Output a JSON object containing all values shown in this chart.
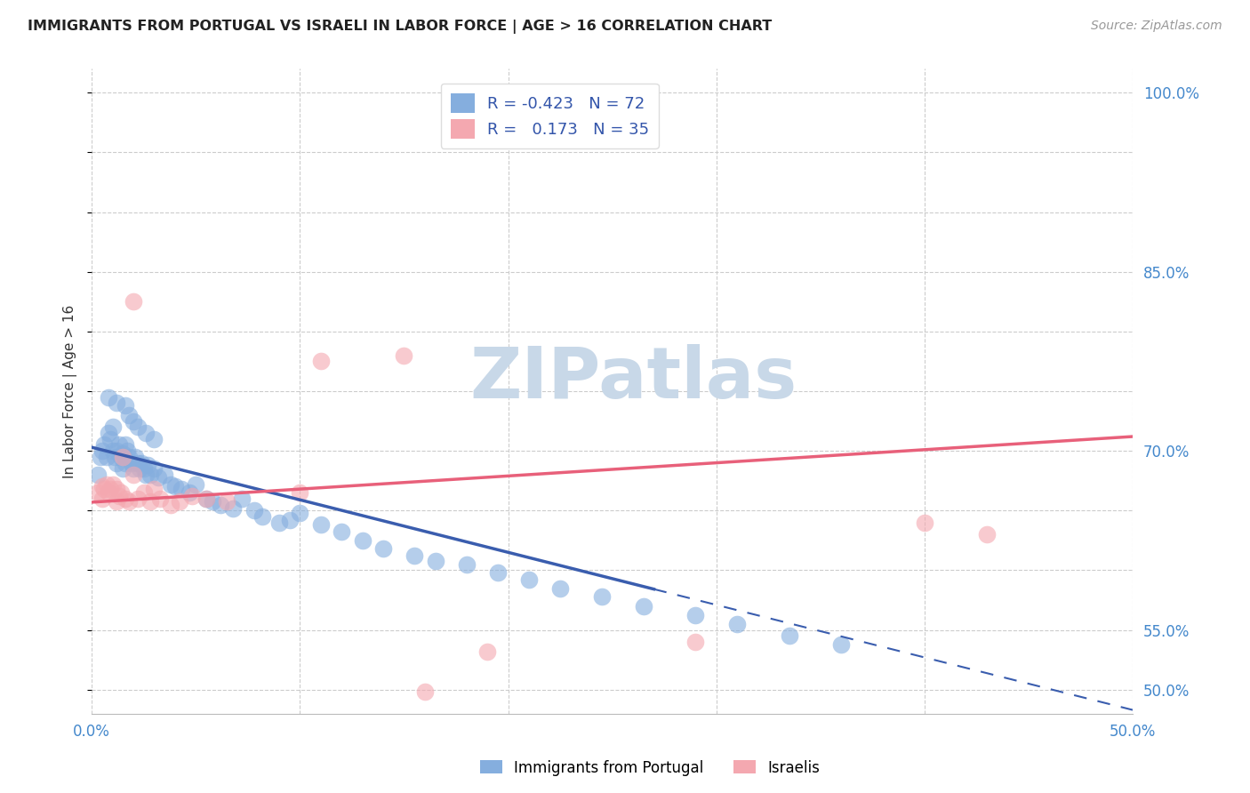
{
  "title": "IMMIGRANTS FROM PORTUGAL VS ISRAELI IN LABOR FORCE | AGE > 16 CORRELATION CHART",
  "source": "Source: ZipAtlas.com",
  "ylabel": "In Labor Force | Age > 16",
  "xlim": [
    0.0,
    0.5
  ],
  "ylim": [
    0.48,
    1.02
  ],
  "legend_label1": "R = -0.423   N = 72",
  "legend_label2": "R =   0.173   N = 35",
  "legend_label1_color": "#85AEDE",
  "legend_label2_color": "#F4A8B0",
  "line1_color": "#3A5DAE",
  "line2_color": "#E8607A",
  "line1_x0": 0.0,
  "line1_y0": 0.703,
  "line1_x1": 0.5,
  "line1_y1": 0.483,
  "line1_solid_end": 0.27,
  "line2_x0": 0.0,
  "line2_y0": 0.657,
  "line2_x1": 0.5,
  "line2_y1": 0.712,
  "watermark": "ZIPatlas",
  "watermark_color": "#C8D8E8",
  "portugal_x": [
    0.003,
    0.004,
    0.005,
    0.006,
    0.007,
    0.008,
    0.009,
    0.01,
    0.01,
    0.011,
    0.012,
    0.012,
    0.013,
    0.014,
    0.015,
    0.015,
    0.016,
    0.016,
    0.017,
    0.018,
    0.019,
    0.02,
    0.021,
    0.022,
    0.023,
    0.024,
    0.025,
    0.026,
    0.027,
    0.028,
    0.03,
    0.032,
    0.035,
    0.038,
    0.04,
    0.043,
    0.047,
    0.05,
    0.055,
    0.058,
    0.062,
    0.068,
    0.072,
    0.078,
    0.082,
    0.09,
    0.095,
    0.1,
    0.11,
    0.12,
    0.13,
    0.14,
    0.155,
    0.165,
    0.18,
    0.195,
    0.21,
    0.225,
    0.245,
    0.265,
    0.29,
    0.31,
    0.335,
    0.36,
    0.008,
    0.012,
    0.016,
    0.018,
    0.02,
    0.022,
    0.026,
    0.03
  ],
  "portugal_y": [
    0.68,
    0.695,
    0.7,
    0.705,
    0.695,
    0.715,
    0.71,
    0.72,
    0.7,
    0.695,
    0.7,
    0.69,
    0.705,
    0.695,
    0.698,
    0.685,
    0.705,
    0.69,
    0.7,
    0.695,
    0.69,
    0.685,
    0.695,
    0.69,
    0.685,
    0.69,
    0.685,
    0.68,
    0.688,
    0.68,
    0.685,
    0.678,
    0.68,
    0.672,
    0.67,
    0.668,
    0.665,
    0.672,
    0.66,
    0.658,
    0.655,
    0.652,
    0.66,
    0.65,
    0.645,
    0.64,
    0.642,
    0.648,
    0.638,
    0.632,
    0.625,
    0.618,
    0.612,
    0.608,
    0.605,
    0.598,
    0.592,
    0.585,
    0.578,
    0.57,
    0.562,
    0.555,
    0.545,
    0.538,
    0.745,
    0.74,
    0.738,
    0.73,
    0.725,
    0.72,
    0.715,
    0.71
  ],
  "israeli_x": [
    0.003,
    0.005,
    0.006,
    0.007,
    0.008,
    0.009,
    0.01,
    0.012,
    0.013,
    0.014,
    0.015,
    0.016,
    0.018,
    0.02,
    0.022,
    0.025,
    0.028,
    0.03,
    0.033,
    0.038,
    0.042,
    0.048,
    0.055,
    0.065,
    0.1,
    0.15,
    0.4,
    0.43,
    0.005,
    0.012,
    0.02,
    0.11,
    0.16,
    0.19,
    0.29
  ],
  "israeli_y": [
    0.665,
    0.67,
    0.668,
    0.672,
    0.665,
    0.668,
    0.672,
    0.668,
    0.662,
    0.665,
    0.695,
    0.66,
    0.658,
    0.68,
    0.66,
    0.665,
    0.658,
    0.668,
    0.66,
    0.655,
    0.658,
    0.662,
    0.66,
    0.658,
    0.665,
    0.78,
    0.64,
    0.63,
    0.66,
    0.658,
    0.825,
    0.775,
    0.498,
    0.532,
    0.54
  ]
}
